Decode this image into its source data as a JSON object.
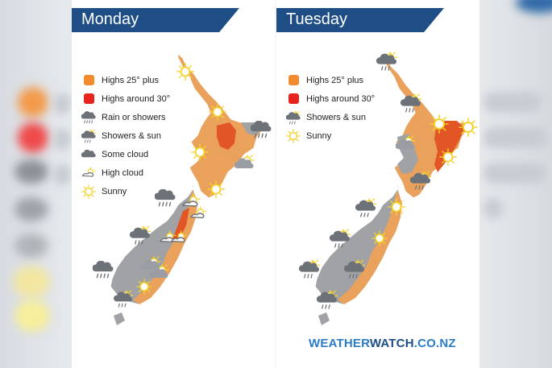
{
  "colors": {
    "header": "#1f4e86",
    "highs25": "#f28a2e",
    "highs30": "#e8231e",
    "land_orange": "#e9a15c",
    "land_gray": "#a0a2a6",
    "sun": "#f5d22a",
    "cloud": "#6d7178"
  },
  "monday": {
    "title": "Monday",
    "legend": [
      {
        "icon": "orange-swatch-icon",
        "label": "Highs 25° plus"
      },
      {
        "icon": "red-swatch-icon",
        "label": "Highs around 30°"
      },
      {
        "icon": "rain-cloud-icon",
        "label": "Rain or showers"
      },
      {
        "icon": "showers-sun-icon",
        "label": "Showers & sun"
      },
      {
        "icon": "cloud-icon",
        "label": "Some cloud"
      },
      {
        "icon": "high-cloud-icon",
        "label": "High cloud"
      },
      {
        "icon": "sun-icon",
        "label": "Sunny"
      }
    ]
  },
  "tuesday": {
    "title": "Tuesday",
    "legend": [
      {
        "icon": "orange-swatch-icon",
        "label": "Highs 25° plus"
      },
      {
        "icon": "red-swatch-icon",
        "label": "Highs around 30°"
      },
      {
        "icon": "showers-sun-icon",
        "label": "Showers & sun"
      },
      {
        "icon": "sun-icon",
        "label": "Sunny"
      }
    ]
  },
  "brand": {
    "part1": "WEATHER",
    "part2": "WATCH",
    "part3": ".CO.NZ"
  }
}
